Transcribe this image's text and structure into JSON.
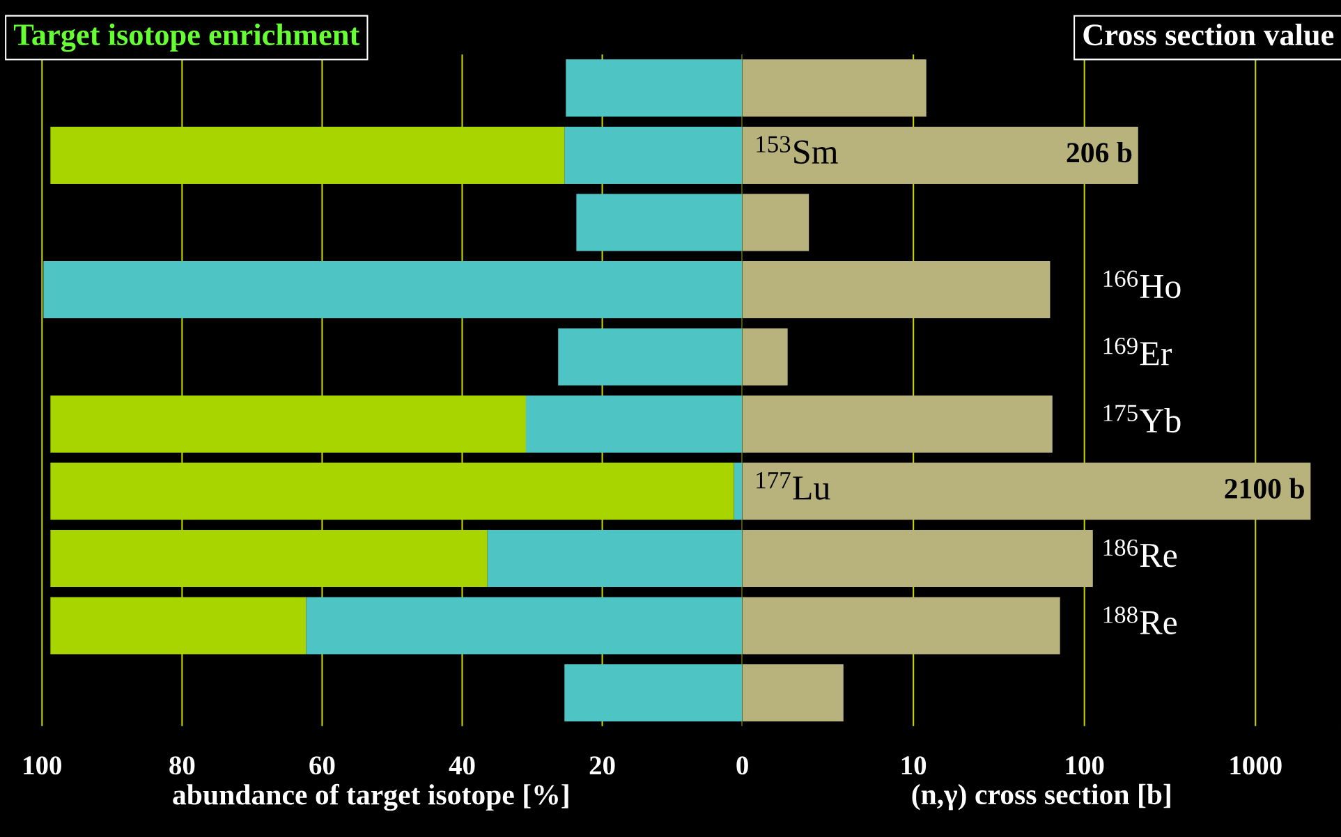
{
  "chart_data": [
    {
      "type": "bar",
      "orientation": "horizontal",
      "stacked": true,
      "title": "Target isotope enrichment",
      "xlabel": "abundance of target isotope [%]",
      "categories": [
        null,
        null,
        null,
        null,
        null,
        null,
        null,
        null,
        null,
        null
      ],
      "series": [
        {
          "color": "#4fc4c4",
          "values": [
            25.2,
            25.4,
            23.7,
            99.8,
            26.3,
            30.9,
            1.2,
            36.4,
            62.3,
            25.4
          ]
        },
        {
          "color": "#a8d400",
          "values": [
            null,
            73.4,
            null,
            null,
            null,
            67.9,
            97.6,
            62.4,
            36.5,
            null
          ]
        }
      ],
      "xlim": [
        106,
        0
      ],
      "xticks": [
        100,
        80,
        60,
        40,
        20,
        0
      ],
      "grid": "x",
      "tick_labels": "x"
    },
    {
      "type": "bar",
      "orientation": "horizontal",
      "log": "x",
      "title": "Cross section value",
      "xlabel": "(n,γ) cross section [b]",
      "categories": [
        null,
        "$^{153}$Sm",
        null,
        "$^{166}$Ho",
        "$^{169}$Er",
        "$^{175}$Yb",
        "$^{177}$Lu",
        "$^{186}$Re",
        "$^{188}$Re",
        null
      ],
      "series": [
        {
          "color": "#b8b27c",
          "values": [
            11.9,
            206,
            2.45,
            63,
            1.84,
            65,
            2100,
            112,
            72,
            3.9
          ],
          "value_labels": [
            null,
            "206 b",
            null,
            null,
            null,
            null,
            "2100 b",
            null,
            null,
            null
          ]
        }
      ],
      "xlim": [
        1,
        3162
      ],
      "xticks": [
        10,
        100,
        1000
      ],
      "grid": "x",
      "tick_labels": "x"
    }
  ]
}
